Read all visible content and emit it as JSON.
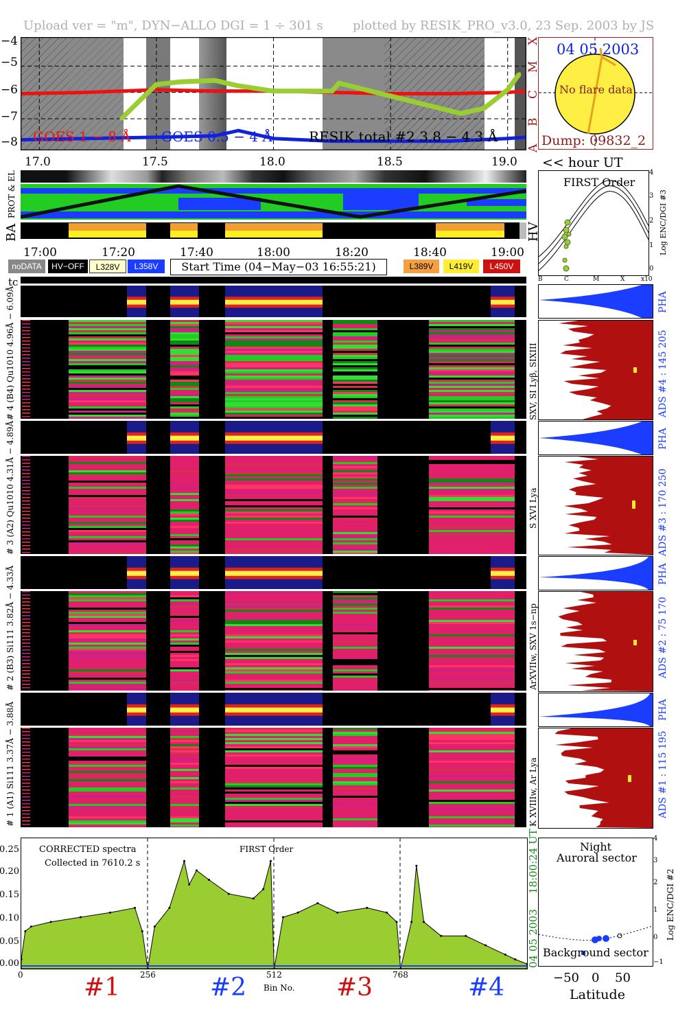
{
  "header": {
    "left": "Upload ver = \"m\", DYN−ALLO DGI =   1 ÷ 301 s",
    "right": "plotted by RESIK_PRO_v3.0, 23 Sep. 2003 by JS"
  },
  "goes": {
    "ytick_labels": [
      "−4",
      "−5",
      "−6",
      "−7",
      "−8"
    ],
    "class_labels": [
      "X",
      "M",
      "C",
      "B",
      "A"
    ],
    "legend_red": "GOES 1 − 8 Å",
    "legend_blue": "GOES 0.5 − 4 Å",
    "legend_black": "RESIK total #2  3.8 − 4.3 Å",
    "xtick_labels": [
      "17.0",
      "17.5",
      "18.0",
      "18.5",
      "19.0"
    ],
    "hour_label": "<< hour UT",
    "colors": {
      "red": "#ee1111",
      "blue": "#1122dd",
      "green": "#9acd32"
    }
  },
  "sun": {
    "date": "04 05 2003",
    "note": "No flare data",
    "dump": "Dump: 09832_2"
  },
  "status": {
    "row_label_top": "PROT & EL",
    "row_label_bottom": "BA",
    "hv_label": "HV"
  },
  "time_axis": {
    "tick_labels": [
      "17:00",
      "17:20",
      "17:40",
      "18:00",
      "18:20",
      "18:40",
      "19:00"
    ]
  },
  "legend": {
    "nodata": "noDATA",
    "hvoff": "HV−OFF",
    "l328": "L328V",
    "l358": "L358V",
    "start_time": "Start Time (04−May−03 16:55:21)",
    "l389": "L389V",
    "l419": "L419V",
    "l450": "L450V"
  },
  "tc_label": "tc",
  "first_order_plot": {
    "title": "FIRST Order",
    "ylabel": "Log ENC/DGI #3",
    "ytick_labels": [
      "4",
      "3",
      "2",
      "1",
      "0"
    ],
    "xtick_labels": [
      "B",
      "C",
      "M",
      "X",
      "x10"
    ]
  },
  "channels": [
    {
      "pha_label": "# 4 (B4) Qu1010 4.96Å − 6.09Å",
      "lines": "SXV, SI Lyβ, SIXIII",
      "ads": "ADS #4 :   145 205",
      "pha": "PHA"
    },
    {
      "pha_label": "# 3 (A2) Qu1010 4.31Å − 4.89Å",
      "lines": "S XVI Lya",
      "ads": "ADS #3 :   170 250",
      "pha": "PHA"
    },
    {
      "pha_label": "# 2 (B3) Si111 3.82Å − 4.33Å",
      "lines": "ArXVIIw, SXV 1s−np",
      "ads": "ADS #2 :   75 170",
      "pha": "PHA"
    },
    {
      "pha_label": "# 1 (A1) Si111 3.37Å − 3.88Å",
      "lines": "K XVIIIw, Ar Lya",
      "ads": "ADS #1 :   115 195",
      "pha": "PHA"
    }
  ],
  "spectrum": {
    "title": "CORRECTED spectra",
    "collected": "Collected in  7610.2 s",
    "order": "FIRST Order",
    "ytick_labels": [
      "0.25",
      "0.20",
      "0.15",
      "0.10",
      "0.05",
      "0.00"
    ],
    "xtick_labels": [
      "0",
      "256",
      "512",
      "768"
    ],
    "xlabel": "Bin No.",
    "date_vertical": "04 05 2003",
    "time_vertical": "18:00:24 UT",
    "channel_labels": [
      "#1",
      "#2",
      "#3",
      "#4"
    ]
  },
  "latitude_plot": {
    "night": "Night",
    "auroral": "Auroral sector",
    "background": "Background sector",
    "ylabel": "Log ENC/DGI #2",
    "ytick_labels": [
      "4",
      "3",
      "2",
      "1",
      "0",
      "−1"
    ],
    "xtick_labels": [
      "−50",
      "0",
      "50"
    ],
    "xlabel": "Latitude"
  },
  "chart_data": [
    {
      "type": "line",
      "title": "",
      "xlabel": "hour UT",
      "ylabel": "",
      "xlim": [
        16.92,
        19.08
      ],
      "ylim": [
        -8.2,
        -3.9
      ],
      "grid": true,
      "series": [
        {
          "name": "GOES 1 − 8 Å",
          "color": "#ee1111",
          "x": [
            16.92,
            17.2,
            17.5,
            17.75,
            18.0,
            18.25,
            18.5,
            18.75,
            19.0,
            19.08
          ],
          "y": [
            -6.05,
            -6.0,
            -5.9,
            -5.95,
            -5.95,
            -6.0,
            -6.05,
            -6.05,
            -6.0,
            -5.95
          ]
        },
        {
          "name": "GOES 0.5 − 4 Å",
          "color": "#1122dd",
          "x": [
            16.92,
            17.2,
            17.5,
            17.75,
            17.85,
            18.0,
            18.25,
            18.5,
            18.75,
            19.0,
            19.08
          ],
          "y": [
            -7.8,
            -7.75,
            -7.7,
            -7.65,
            -7.45,
            -7.75,
            -7.85,
            -7.85,
            -7.85,
            -7.75,
            -7.7
          ]
        },
        {
          "name": "RESIK total #2  3.8 − 4.3 Å",
          "color": "#9acd32",
          "x": [
            17.35,
            17.43,
            17.5,
            17.6,
            17.75,
            17.85,
            18.0,
            18.25,
            18.28,
            18.8,
            18.9,
            19.0,
            19.05
          ],
          "y": [
            -7.0,
            -6.3,
            -5.7,
            -5.6,
            -5.55,
            -5.75,
            -5.95,
            -5.95,
            -5.65,
            -6.8,
            -6.6,
            -5.9,
            -5.3
          ]
        }
      ]
    },
    {
      "type": "area",
      "title": "CORRECTED spectra",
      "xlabel": "Bin No.",
      "ylabel": "",
      "xlim": [
        0,
        1024
      ],
      "ylim": [
        0,
        0.27
      ],
      "series": [
        {
          "name": "",
          "color": "#9acd32",
          "x": [
            0,
            8,
            20,
            60,
            120,
            180,
            230,
            245,
            256,
            270,
            300,
            330,
            340,
            355,
            380,
            420,
            470,
            490,
            505,
            512,
            530,
            560,
            600,
            640,
            700,
            740,
            760,
            768,
            790,
            800,
            815,
            850,
            900,
            940,
            980,
            1000,
            1024
          ],
          "y": [
            0.02,
            0.08,
            0.09,
            0.1,
            0.11,
            0.12,
            0.13,
            0.08,
            0.0,
            0.09,
            0.13,
            0.23,
            0.18,
            0.21,
            0.19,
            0.16,
            0.15,
            0.17,
            0.23,
            0.0,
            0.11,
            0.12,
            0.14,
            0.12,
            0.13,
            0.12,
            0.1,
            0.0,
            0.1,
            0.22,
            0.1,
            0.07,
            0.07,
            0.05,
            0.03,
            0.02,
            0.01
          ]
        }
      ]
    }
  ]
}
